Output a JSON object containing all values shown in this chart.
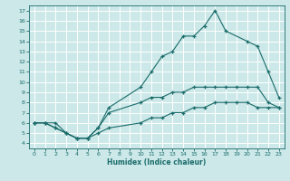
{
  "title": "",
  "xlabel": "Humidex (Indice chaleur)",
  "ylabel": "",
  "bg_color": "#cce8e8",
  "line_color": "#1a6b6b",
  "grid_color": "#ffffff",
  "xlim": [
    -0.5,
    23.5
  ],
  "ylim": [
    3.5,
    17.5
  ],
  "xticks": [
    0,
    1,
    2,
    3,
    4,
    5,
    6,
    7,
    8,
    9,
    10,
    11,
    12,
    13,
    14,
    15,
    16,
    17,
    18,
    19,
    20,
    21,
    22,
    23
  ],
  "yticks": [
    4,
    5,
    6,
    7,
    8,
    9,
    10,
    11,
    12,
    13,
    14,
    15,
    16,
    17
  ],
  "series": [
    {
      "x": [
        0,
        1,
        2,
        3,
        4,
        5,
        6,
        7,
        10,
        11,
        12,
        13,
        14,
        15,
        16,
        17,
        18,
        20,
        21,
        22,
        23
      ],
      "y": [
        6,
        6,
        6,
        5,
        4.5,
        4.5,
        5.5,
        7.5,
        9.5,
        11,
        12.5,
        13,
        14.5,
        14.5,
        15.5,
        17,
        15,
        14,
        13.5,
        11,
        8.5
      ]
    },
    {
      "x": [
        0,
        1,
        2,
        3,
        4,
        5,
        6,
        7,
        10,
        11,
        12,
        13,
        14,
        15,
        16,
        17,
        18,
        19,
        20,
        21,
        22,
        23
      ],
      "y": [
        6,
        6,
        5.5,
        5,
        4.5,
        4.5,
        5.5,
        7,
        8,
        8.5,
        8.5,
        9,
        9,
        9.5,
        9.5,
        9.5,
        9.5,
        9.5,
        9.5,
        9.5,
        8,
        7.5
      ]
    },
    {
      "x": [
        0,
        1,
        2,
        3,
        4,
        5,
        6,
        7,
        10,
        11,
        12,
        13,
        14,
        15,
        16,
        17,
        18,
        19,
        20,
        21,
        22,
        23
      ],
      "y": [
        6,
        6,
        5.5,
        5,
        4.5,
        4.5,
        5,
        5.5,
        6,
        6.5,
        6.5,
        7,
        7,
        7.5,
        7.5,
        8,
        8,
        8,
        8,
        7.5,
        7.5,
        7.5
      ]
    }
  ]
}
